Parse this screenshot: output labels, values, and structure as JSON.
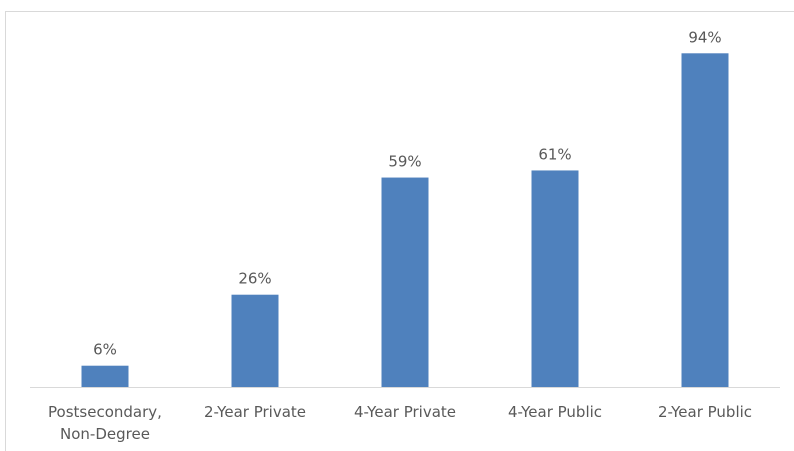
{
  "chart_data": {
    "type": "bar",
    "categories": [
      [
        "Postsecondary,",
        "Non-Degree"
      ],
      [
        "2-Year Private"
      ],
      [
        "4-Year Private"
      ],
      [
        "4-Year Public"
      ],
      [
        "2-Year Public"
      ]
    ],
    "values": [
      6,
      26,
      59,
      61,
      94
    ],
    "value_labels": [
      "6%",
      "26%",
      "59%",
      "61%",
      "94%"
    ],
    "title": "",
    "xlabel": "",
    "ylabel": "",
    "ylim": [
      0,
      100
    ],
    "grid": false,
    "legend": "none",
    "colors": {
      "bar": "#4F81BD",
      "axis": "#d9d9d9",
      "text": "#595959"
    }
  }
}
